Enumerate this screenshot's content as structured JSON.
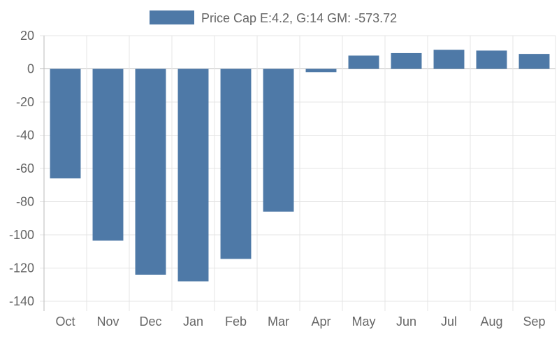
{
  "chart_data": {
    "type": "bar",
    "title": "",
    "xlabel": "",
    "ylabel": "",
    "categories": [
      "Oct",
      "Nov",
      "Dec",
      "Jan",
      "Feb",
      "Mar",
      "Apr",
      "May",
      "Jun",
      "Jul",
      "Aug",
      "Sep"
    ],
    "series": [
      {
        "name": "Price Cap E:4.2, G:14 GM: -573.72",
        "color": "#4e79a7",
        "values": [
          -66,
          -103.5,
          -124,
          -128,
          -114.5,
          -86,
          -2,
          8,
          9.5,
          11.5,
          11,
          9
        ]
      }
    ],
    "ylim": [
      -140,
      20
    ],
    "yticks": [
      "20",
      "0",
      "-20",
      "-40",
      "-60",
      "-80",
      "-100",
      "-120",
      "-140"
    ],
    "grid": true,
    "legend": "top-center"
  }
}
